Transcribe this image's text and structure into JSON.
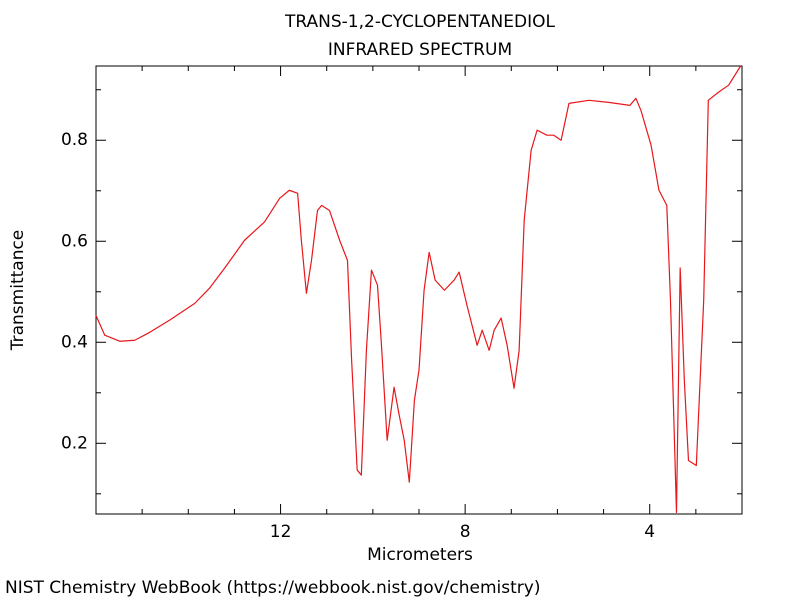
{
  "chart_data": {
    "type": "line",
    "title": "TRANS-1,2-CYCLOPENTANEDIOL",
    "subtitle": "INFRARED SPECTRUM",
    "x_label": "Micrometers",
    "y_label": "Transmittance",
    "source": "NIST Chemistry WebBook (https://webbook.nist.gov/chemistry)",
    "xlim": [
      16,
      2
    ],
    "ylim": [
      0.06,
      0.947
    ],
    "xticks": [
      12,
      8,
      4
    ],
    "xminorticks": [
      15,
      14,
      13,
      11,
      10,
      9,
      7,
      6,
      5,
      3
    ],
    "yticks": [
      0.2,
      0.4,
      0.6,
      0.8
    ],
    "yminorticks": [
      0.1,
      0.3,
      0.5,
      0.7,
      0.9
    ],
    "series": [
      {
        "color": "#e8171b",
        "x": [
          16.0,
          15.81,
          15.48,
          15.16,
          14.83,
          14.4,
          13.86,
          13.54,
          13.21,
          12.78,
          12.35,
          12.02,
          11.81,
          11.63,
          11.55,
          11.44,
          11.33,
          11.2,
          11.11,
          10.94,
          10.72,
          10.55,
          10.46,
          10.34,
          10.25,
          10.14,
          10.03,
          9.9,
          9.82,
          9.69,
          9.54,
          9.43,
          9.32,
          9.21,
          9.1,
          9.0,
          8.89,
          8.78,
          8.65,
          8.45,
          8.24,
          8.13,
          7.96,
          7.74,
          7.63,
          7.48,
          7.37,
          7.22,
          7.09,
          6.94,
          6.83,
          6.72,
          6.57,
          6.44,
          6.23,
          6.08,
          5.92,
          5.75,
          5.32,
          4.89,
          4.43,
          4.3,
          4.19,
          3.97,
          3.8,
          3.63,
          3.55,
          3.42,
          3.34,
          3.25,
          3.16,
          2.99,
          2.83,
          2.73,
          2.51,
          2.29,
          2.03
        ],
        "values": [
          0.453,
          0.414,
          0.402,
          0.404,
          0.42,
          0.444,
          0.477,
          0.507,
          0.547,
          0.602,
          0.638,
          0.685,
          0.701,
          0.695,
          0.602,
          0.497,
          0.562,
          0.661,
          0.671,
          0.661,
          0.602,
          0.562,
          0.364,
          0.147,
          0.137,
          0.384,
          0.543,
          0.513,
          0.404,
          0.206,
          0.311,
          0.256,
          0.206,
          0.123,
          0.285,
          0.345,
          0.503,
          0.578,
          0.523,
          0.503,
          0.523,
          0.539,
          0.473,
          0.394,
          0.424,
          0.384,
          0.424,
          0.448,
          0.394,
          0.309,
          0.384,
          0.642,
          0.78,
          0.82,
          0.81,
          0.81,
          0.8,
          0.873,
          0.879,
          0.875,
          0.869,
          0.883,
          0.859,
          0.79,
          0.701,
          0.671,
          0.483,
          0.063,
          0.547,
          0.325,
          0.166,
          0.156,
          0.483,
          0.879,
          0.895,
          0.909,
          0.947
        ]
      }
    ]
  }
}
